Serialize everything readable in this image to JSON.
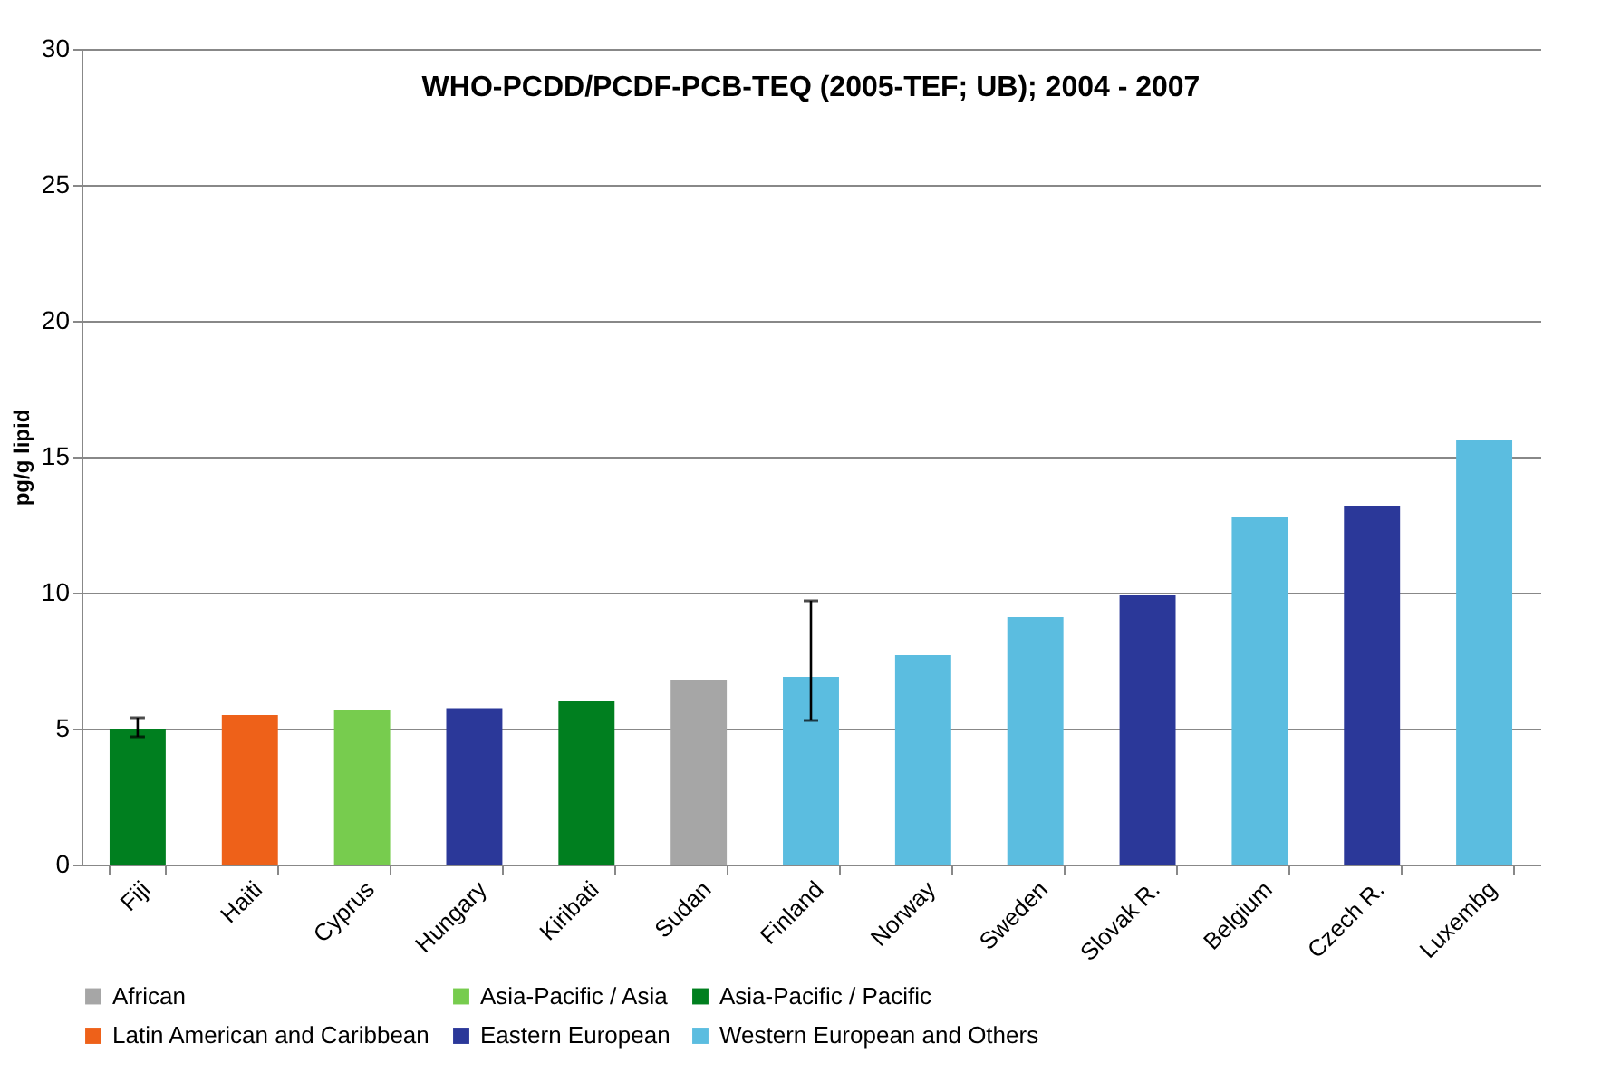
{
  "chart_data": {
    "type": "bar",
    "title": "WHO-PCDD/PCDF-PCB-TEQ  (2005-TEF; UB);  2004 - 2007",
    "ylabel": "pg/g lipid",
    "categories": [
      "Fiji",
      "Haiti",
      "Cyprus",
      "Hungary",
      "Kiribati",
      "Sudan",
      "Finland",
      "Norway",
      "Sweden",
      "Slovak R.",
      "Belgium",
      "Czech R.",
      "Luxembg"
    ],
    "series": [
      {
        "name": "African",
        "color": "#a6a6a6",
        "values": [
          null,
          null,
          null,
          null,
          null,
          6.8,
          null,
          null,
          null,
          null,
          null,
          null,
          null
        ]
      },
      {
        "name": "Asia-Pacific / Asia",
        "color": "#77cc4e",
        "values": [
          null,
          null,
          5.7,
          null,
          null,
          null,
          null,
          null,
          null,
          null,
          null,
          null,
          null
        ]
      },
      {
        "name": "Asia-Pacific / Pacific",
        "color": "#007f1f",
        "values": [
          5.0,
          null,
          null,
          null,
          6.0,
          null,
          null,
          null,
          null,
          null,
          null,
          null,
          null
        ],
        "errors": [
          [
            4.7,
            5.4
          ],
          null,
          null,
          null,
          null,
          null,
          null,
          null,
          null,
          null,
          null,
          null,
          null
        ]
      },
      {
        "name": "Latin American and Caribbean",
        "color": "#ee6119",
        "values": [
          null,
          5.5,
          null,
          null,
          null,
          null,
          null,
          null,
          null,
          null,
          null,
          null,
          null
        ]
      },
      {
        "name": "Eastern European",
        "color": "#2b3899",
        "values": [
          null,
          null,
          null,
          5.75,
          null,
          null,
          null,
          null,
          null,
          9.9,
          null,
          13.2,
          null
        ]
      },
      {
        "name": "Western European and Others",
        "color": "#5bbde0",
        "values": [
          null,
          null,
          null,
          null,
          null,
          null,
          6.9,
          7.7,
          9.1,
          null,
          12.8,
          null,
          15.6
        ],
        "errors": [
          null,
          null,
          null,
          null,
          null,
          null,
          [
            5.3,
            9.7
          ],
          null,
          null,
          null,
          null,
          null,
          null
        ]
      }
    ],
    "ylim": [
      0,
      30
    ],
    "yticks": [
      0,
      5,
      10,
      15,
      20,
      25,
      30
    ],
    "grid": "y",
    "legend": "bottom"
  }
}
